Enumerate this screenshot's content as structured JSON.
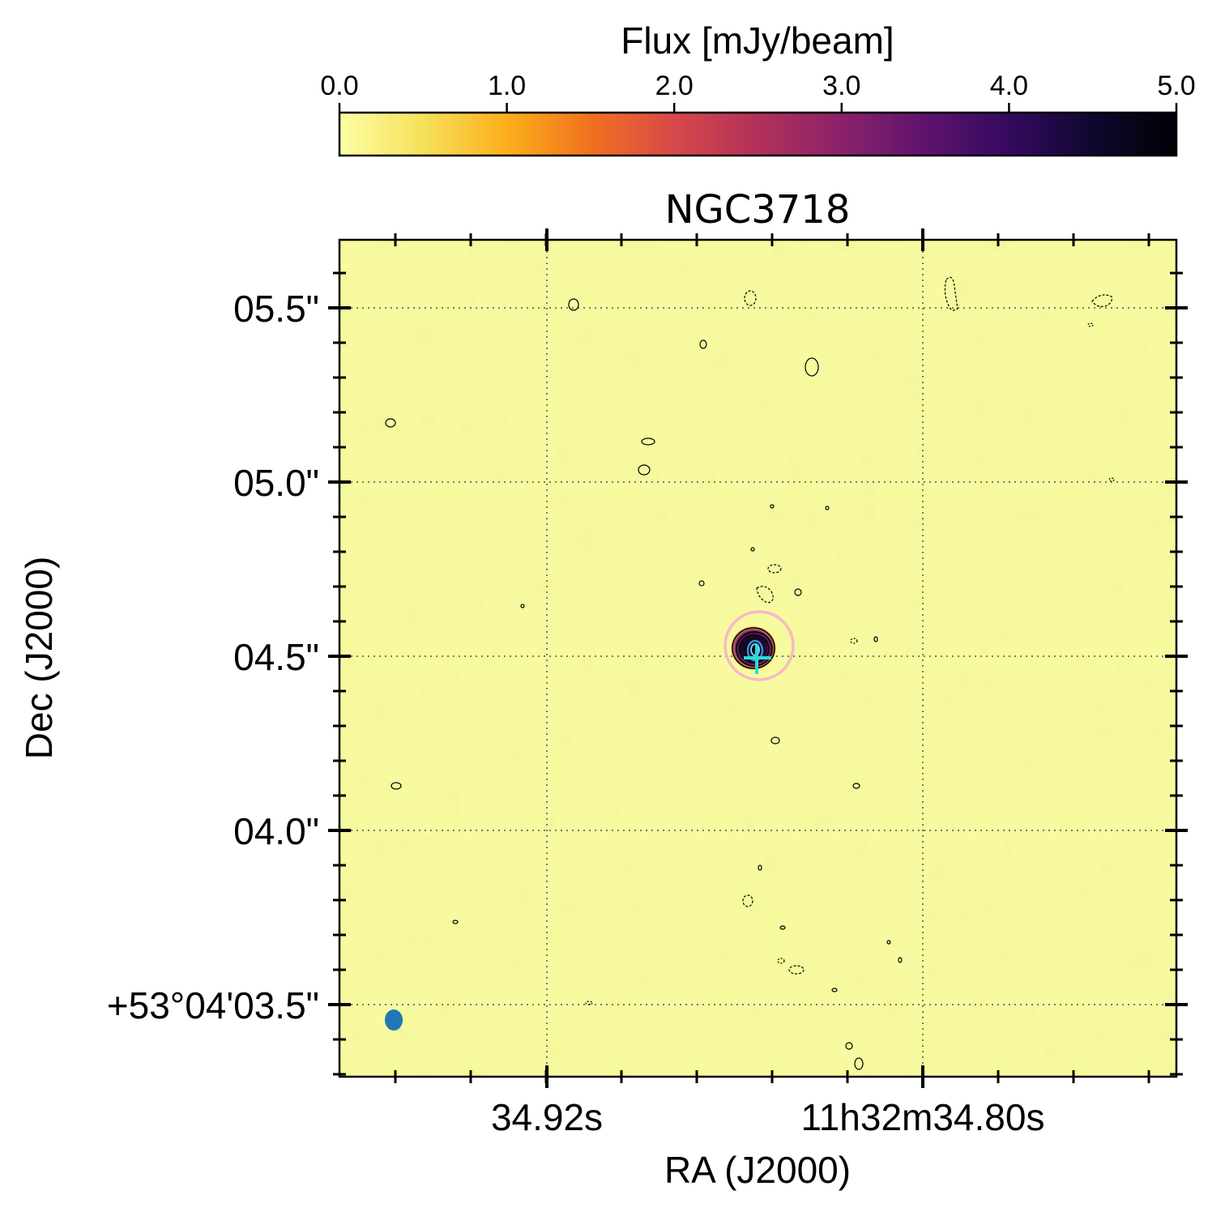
{
  "chart_data": {
    "type": "heatmap",
    "title": "NGC3718",
    "xlabel": "RA (J2000)",
    "ylabel": "Dec (J2000)",
    "colorbar": {
      "label": "Flux [mJy/beam]",
      "range": [
        0.0,
        5.0
      ],
      "ticks": [
        "0.0",
        "1.0",
        "2.0",
        "3.0",
        "4.0",
        "5.0"
      ],
      "colormap": "inferno_r",
      "position": "top"
    },
    "x_ticks": [
      "34.92s",
      "11h32m34.80s"
    ],
    "y_ticks": [
      "+53°04'03.5\"",
      "04.0\"",
      "04.5\"",
      "05.0\"",
      "05.5\""
    ],
    "y_range_arcsec_offset": [
      -0.22,
      2.18
    ],
    "grid": true,
    "source": {
      "ra_offset_s": -0.0723,
      "dec_offset_arcsec": 1.04,
      "peak_flux_mjy_per_beam": 5.0,
      "marker": "cross",
      "circle": true
    },
    "beam": {
      "position": "bottom-left"
    },
    "colors": {
      "background_map": "#f7fa9f",
      "grid": "#7a7a6a",
      "marker": "#23e0d6",
      "circle": "#f7b9c4",
      "beam": "#1f77b4",
      "contour": "#000000"
    }
  }
}
